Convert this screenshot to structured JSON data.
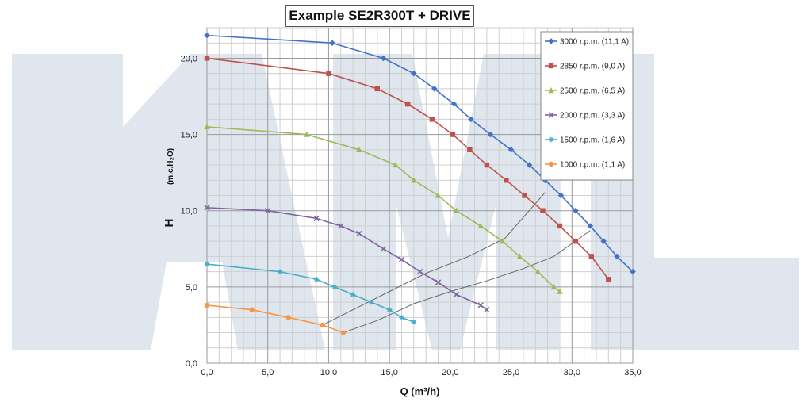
{
  "chart_data": {
    "type": "line",
    "title": "Example SE2R300T + DRIVE",
    "xlabel": "Q (m³/h)",
    "ylabel": "H",
    "ylabel_unit": "(m.c.H₂O)",
    "xlim": [
      0,
      35
    ],
    "ylim": [
      0,
      22
    ],
    "xticks": [
      0,
      5,
      10,
      15,
      20,
      25,
      30,
      35
    ],
    "xtick_labels": [
      "0,0",
      "5,0",
      "10,0",
      "15,0",
      "20,0",
      "25,0",
      "30,0",
      "35,0"
    ],
    "yticks": [
      0,
      5,
      10,
      15,
      20
    ],
    "ytick_labels": [
      "0,0",
      "5,0",
      "10,0",
      "15,0",
      "20,0"
    ],
    "grid": true,
    "legend_position": "top-right",
    "series": [
      {
        "name": "3000 r.p.m. (11,1 A)",
        "color": "#4472c4",
        "marker": "diamond",
        "points": [
          [
            0,
            21.5
          ],
          [
            10.3,
            21
          ],
          [
            14.5,
            20
          ],
          [
            17,
            19
          ],
          [
            18.7,
            18
          ],
          [
            20.3,
            17
          ],
          [
            21.7,
            16
          ],
          [
            23.3,
            15
          ],
          [
            25,
            14
          ],
          [
            26.5,
            13
          ],
          [
            27.8,
            12
          ],
          [
            29.1,
            11
          ],
          [
            30.3,
            10
          ],
          [
            31.5,
            9
          ],
          [
            32.6,
            8
          ],
          [
            33.7,
            7
          ],
          [
            35,
            6
          ]
        ]
      },
      {
        "name": "2850 r.p.m. (9,0 A)",
        "color": "#c0504d",
        "marker": "square",
        "points": [
          [
            0,
            20
          ],
          [
            10,
            19
          ],
          [
            14,
            18
          ],
          [
            16.5,
            17
          ],
          [
            18.5,
            16
          ],
          [
            20.2,
            15
          ],
          [
            21.6,
            14
          ],
          [
            23,
            13
          ],
          [
            24.6,
            12
          ],
          [
            26.1,
            11
          ],
          [
            27.6,
            10
          ],
          [
            29,
            9
          ],
          [
            30.3,
            8
          ],
          [
            31.6,
            7
          ],
          [
            33,
            5.5
          ]
        ]
      },
      {
        "name": "2500 r.p.m. (6,5 A)",
        "color": "#9bbb59",
        "marker": "triangle",
        "points": [
          [
            0,
            15.5
          ],
          [
            8.2,
            15
          ],
          [
            12.5,
            14
          ],
          [
            15.5,
            13
          ],
          [
            17,
            12
          ],
          [
            19,
            11
          ],
          [
            20.5,
            10
          ],
          [
            22.5,
            9
          ],
          [
            24.3,
            8
          ],
          [
            25.7,
            7
          ],
          [
            27.2,
            6
          ],
          [
            28.5,
            5
          ],
          [
            29,
            4.7
          ]
        ]
      },
      {
        "name": "2000 r.p.m. (3,3 A)",
        "color": "#8064a2",
        "marker": "cross",
        "points": [
          [
            0,
            10.2
          ],
          [
            5,
            10
          ],
          [
            9,
            9.5
          ],
          [
            11,
            9
          ],
          [
            12.5,
            8.5
          ],
          [
            14.5,
            7.5
          ],
          [
            16,
            6.8
          ],
          [
            17.5,
            6
          ],
          [
            19,
            5.3
          ],
          [
            20.5,
            4.5
          ],
          [
            22.5,
            3.8
          ],
          [
            23,
            3.5
          ]
        ]
      },
      {
        "name": "1500 r.p.m. (1,6 A)",
        "color": "#4bacc6",
        "marker": "star",
        "points": [
          [
            0,
            6.5
          ],
          [
            6,
            6
          ],
          [
            9,
            5.5
          ],
          [
            10.5,
            5
          ],
          [
            12,
            4.5
          ],
          [
            13.5,
            4
          ],
          [
            15,
            3.5
          ],
          [
            16,
            3
          ],
          [
            17,
            2.7
          ]
        ]
      },
      {
        "name": "1000 r.p.m. (1,1 A)",
        "color": "#f79646",
        "marker": "circle",
        "points": [
          [
            0,
            3.8
          ],
          [
            3.7,
            3.5
          ],
          [
            6.7,
            3
          ],
          [
            9.5,
            2.5
          ],
          [
            11.2,
            2
          ]
        ]
      }
    ],
    "system_curves": [
      {
        "color": "#666666",
        "points": [
          [
            9.5,
            2.5
          ],
          [
            12,
            3.5
          ],
          [
            15,
            4.7
          ],
          [
            18,
            5.9
          ],
          [
            21.5,
            7
          ],
          [
            24.5,
            8.2
          ],
          [
            27.8,
            11.2
          ]
        ]
      },
      {
        "color": "#666666",
        "points": [
          [
            11.2,
            2
          ],
          [
            14,
            2.8
          ],
          [
            17,
            3.9
          ],
          [
            20,
            4.7
          ],
          [
            23,
            5.4
          ],
          [
            26,
            6.2
          ],
          [
            28.5,
            7
          ],
          [
            31.5,
            8.7
          ]
        ]
      }
    ]
  },
  "background": {
    "watermark_color": "#dfe6ee"
  }
}
